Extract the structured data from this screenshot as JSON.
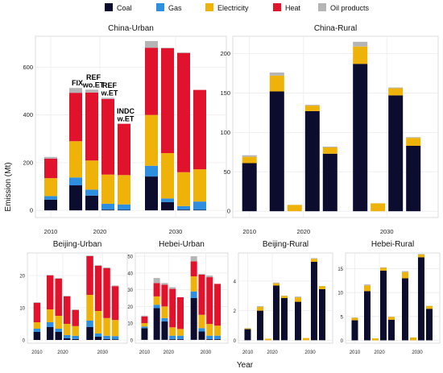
{
  "colors": {
    "Coal": "#0b0c2e",
    "Gas": "#2e8ee0",
    "Electricity": "#efb208",
    "Heat": "#e0122c",
    "Oil products": "#b5b5b5",
    "panel_bg": "#ffffff",
    "grid": "#ececec",
    "frame": "#d6d6d6"
  },
  "legend": {
    "items": [
      "Coal",
      "Gas",
      "Electricity",
      "Heat",
      "Oil products"
    ]
  },
  "axes": {
    "ylabel": "Emission (Mt)",
    "xlabel": "Year"
  },
  "chart_data": [
    {
      "type": "bar",
      "stacked": true,
      "title": "China-Urban",
      "series_order": [
        "Coal",
        "Gas",
        "Electricity",
        "Heat",
        "Oil products"
      ],
      "yticks": [
        0,
        200,
        400,
        600
      ],
      "ylim": [
        -30,
        730
      ],
      "grid": true,
      "xticks": [
        "2010",
        "2020",
        "2030"
      ],
      "annotations": [
        {
          "bar": 1,
          "lines": [
            "FIX"
          ]
        },
        {
          "bar": 2,
          "lines": [
            "REF",
            "wo.ET"
          ]
        },
        {
          "bar": 3,
          "lines": [
            "REF",
            "w.ET"
          ]
        },
        {
          "bar": 4,
          "lines": [
            "INDC",
            "w.ET"
          ]
        }
      ],
      "bars": [
        {
          "Coal": 45,
          "Gas": 15,
          "Electricity": 75,
          "Heat": 82,
          "Oil products": 7
        },
        {
          "Coal": 105,
          "Gas": 33,
          "Electricity": 152,
          "Heat": 203,
          "Oil products": 20
        },
        {
          "Coal": 62,
          "Gas": 25,
          "Electricity": 122,
          "Heat": 285,
          "Oil products": 12
        },
        {
          "Coal": 3,
          "Gas": 25,
          "Electricity": 122,
          "Heat": 317,
          "Oil products": 5
        },
        {
          "Coal": 2,
          "Gas": 23,
          "Electricity": 123,
          "Heat": 215,
          "Oil products": 0
        },
        {
          "Coal": 142,
          "Gas": 45,
          "Electricity": 213,
          "Heat": 282,
          "Oil products": 28
        },
        {
          "Coal": 35,
          "Gas": 15,
          "Electricity": 190,
          "Heat": 440,
          "Oil products": 2
        },
        {
          "Coal": 3,
          "Gas": 15,
          "Electricity": 142,
          "Heat": 500,
          "Oil products": 2
        },
        {
          "Coal": 2,
          "Gas": 35,
          "Electricity": 135,
          "Heat": 333,
          "Oil products": 0
        }
      ]
    },
    {
      "type": "bar",
      "stacked": true,
      "title": "China-Rural",
      "series_order": [
        "Coal",
        "Gas",
        "Electricity",
        "Heat",
        "Oil products"
      ],
      "yticks": [
        0,
        50,
        100,
        150,
        200
      ],
      "ylim": [
        -8,
        222
      ],
      "grid": true,
      "xticks": [
        "2010",
        "2020",
        "2030"
      ],
      "bars": [
        {
          "Coal": 61,
          "Electricity": 8,
          "Oil products": 2
        },
        {
          "Coal": 152,
          "Electricity": 20,
          "Oil products": 4
        },
        {
          "Coal": 0,
          "Electricity": 8,
          "Oil products": 0
        },
        {
          "Coal": 127,
          "Electricity": 7,
          "Oil products": 1
        },
        {
          "Coal": 73,
          "Electricity": 8,
          "Oil products": 1
        },
        {
          "Coal": 187,
          "Electricity": 22,
          "Oil products": 6
        },
        {
          "Coal": 0,
          "Electricity": 10,
          "Oil products": 0
        },
        {
          "Coal": 147,
          "Electricity": 9,
          "Oil products": 1
        },
        {
          "Coal": 83,
          "Electricity": 10,
          "Oil products": 1
        }
      ]
    },
    {
      "type": "bar",
      "stacked": true,
      "title": "Beijing-Urban",
      "series_order": [
        "Coal",
        "Gas",
        "Electricity",
        "Heat",
        "Oil products"
      ],
      "yticks": [
        0,
        10,
        20
      ],
      "ylim": [
        -1,
        27
      ],
      "grid": true,
      "xticks": [
        "2010",
        "2020",
        "2030"
      ],
      "bars": [
        {
          "Coal": 2.5,
          "Gas": 1,
          "Electricity": 2,
          "Heat": 6,
          "Oil products": 0.2
        },
        {
          "Coal": 4,
          "Gas": 1.5,
          "Electricity": 4,
          "Heat": 10.5,
          "Oil products": 0.2
        },
        {
          "Coal": 2.5,
          "Gas": 1,
          "Electricity": 4,
          "Heat": 11.5,
          "Oil products": 0.2
        },
        {
          "Coal": 0.5,
          "Gas": 1,
          "Electricity": 3.5,
          "Heat": 8.5,
          "Oil products": 0.2
        },
        {
          "Coal": 0.3,
          "Gas": 1,
          "Electricity": 3,
          "Heat": 5,
          "Oil products": 0.2
        },
        {
          "Coal": 4,
          "Gas": 2,
          "Electricity": 8,
          "Heat": 12,
          "Oil products": 0.2
        },
        {
          "Coal": 1,
          "Gas": 1,
          "Electricity": 7,
          "Heat": 14,
          "Oil products": 0.2
        },
        {
          "Coal": 0.3,
          "Gas": 1,
          "Electricity": 5.5,
          "Heat": 15.5,
          "Oil products": 0.2
        },
        {
          "Coal": 0.2,
          "Gas": 1,
          "Electricity": 5,
          "Heat": 10.5,
          "Oil products": 0.2
        }
      ]
    },
    {
      "type": "bar",
      "stacked": true,
      "title": "Hebei-Urban",
      "series_order": [
        "Coal",
        "Gas",
        "Electricity",
        "Heat",
        "Oil products"
      ],
      "yticks": [
        0,
        10,
        20,
        30,
        40,
        50
      ],
      "ylim": [
        -2,
        52
      ],
      "grid": true,
      "xticks": [
        "2010",
        "2020",
        "2030"
      ],
      "bars": [
        {
          "Coal": 7,
          "Gas": 1,
          "Electricity": 2,
          "Heat": 4,
          "Oil products": 0.5
        },
        {
          "Coal": 19,
          "Gas": 2,
          "Electricity": 5,
          "Heat": 8,
          "Oil products": 3
        },
        {
          "Coal": 11,
          "Gas": 2,
          "Electricity": 7,
          "Heat": 13,
          "Oil products": 1
        },
        {
          "Coal": 0.5,
          "Gas": 2,
          "Electricity": 5,
          "Heat": 23,
          "Oil products": 1
        },
        {
          "Coal": 0.5,
          "Gas": 2,
          "Electricity": 4,
          "Heat": 19,
          "Oil products": 0
        },
        {
          "Coal": 25,
          "Gas": 4,
          "Electricity": 9,
          "Heat": 9,
          "Oil products": 3
        },
        {
          "Coal": 5,
          "Gas": 2,
          "Electricity": 8,
          "Heat": 24,
          "Oil products": 0.5
        },
        {
          "Coal": 0.5,
          "Gas": 2,
          "Electricity": 7,
          "Heat": 28,
          "Oil products": 1
        },
        {
          "Coal": 0.5,
          "Gas": 2,
          "Electricity": 6,
          "Heat": 25,
          "Oil products": 0
        }
      ]
    },
    {
      "type": "bar",
      "stacked": true,
      "title": "Beijing-Rural",
      "series_order": [
        "Coal",
        "Gas",
        "Electricity",
        "Heat",
        "Oil products"
      ],
      "yticks": [
        0,
        2,
        4
      ],
      "ylim": [
        -0.2,
        5.9
      ],
      "grid": true,
      "xticks": [
        "2010",
        "2020",
        "2030"
      ],
      "bars": [
        {
          "Coal": 0.75,
          "Electricity": 0.05,
          "Oil products": 0.02
        },
        {
          "Coal": 2,
          "Electricity": 0.25,
          "Oil products": 0.05
        },
        {
          "Coal": 0,
          "Electricity": 0.1,
          "Oil products": 0
        },
        {
          "Coal": 3.7,
          "Electricity": 0.15,
          "Oil products": 0.05
        },
        {
          "Coal": 2.85,
          "Electricity": 0.15,
          "Oil products": 0.02
        },
        {
          "Coal": 2.6,
          "Electricity": 0.3,
          "Oil products": 0.05
        },
        {
          "Coal": 0,
          "Electricity": 0.15,
          "Oil products": 0
        },
        {
          "Coal": 5.3,
          "Electricity": 0.2,
          "Oil products": 0.05
        },
        {
          "Coal": 3.45,
          "Electricity": 0.2,
          "Oil products": 0.02
        }
      ]
    },
    {
      "type": "bar",
      "stacked": true,
      "title": "Hebei-Rural",
      "series_order": [
        "Coal",
        "Gas",
        "Electricity",
        "Heat",
        "Oil products"
      ],
      "yticks": [
        0,
        5,
        10,
        15
      ],
      "ylim": [
        -0.6,
        18.3
      ],
      "grid": true,
      "xticks": [
        "2010",
        "2020",
        "2030"
      ],
      "bars": [
        {
          "Coal": 4.2,
          "Electricity": 0.5,
          "Oil products": 0.1
        },
        {
          "Coal": 10.3,
          "Electricity": 1.2,
          "Oil products": 0.2
        },
        {
          "Coal": 0,
          "Electricity": 0.4,
          "Oil products": 0
        },
        {
          "Coal": 14.6,
          "Electricity": 0.6,
          "Oil products": 0.1
        },
        {
          "Coal": 4.3,
          "Electricity": 0.6,
          "Oil products": 0.05
        },
        {
          "Coal": 13,
          "Electricity": 1.3,
          "Oil products": 0.2
        },
        {
          "Coal": 0,
          "Electricity": 0.6,
          "Oil products": 0
        },
        {
          "Coal": 17.4,
          "Electricity": 0.6,
          "Oil products": 0.1
        },
        {
          "Coal": 6.6,
          "Electricity": 0.6,
          "Oil products": 0.05
        }
      ]
    }
  ]
}
